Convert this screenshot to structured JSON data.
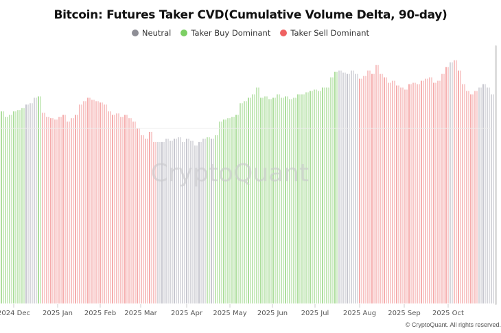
{
  "chart_data": {
    "type": "bar",
    "title": "Bitcoin: Futures Taker CVD(Cumulative Volume Delta, 90-day)",
    "legend": [
      {
        "key": "n",
        "label": "Neutral",
        "color": "#8e8e96"
      },
      {
        "key": "g",
        "label": "Taker Buy Dominant",
        "color": "#7ccf64"
      },
      {
        "key": "r",
        "label": "Taker Sell Dominant",
        "color": "#ef6262"
      }
    ],
    "bar_colors": {
      "n": "#c4c4cc",
      "g": "#a9dc98",
      "r": "#f4a9a9"
    },
    "xlabel": "",
    "ylabel": "",
    "x_ticks": [
      "2024 Dec",
      "2025 Jan",
      "2025 Feb",
      "2025 Mar",
      "2025 Apr",
      "2025 May",
      "2025 Jun",
      "2025 Jul",
      "2025 Aug",
      "2025 Sep",
      "2025 Oct"
    ],
    "ylim": [
      0,
      380
    ],
    "values": [
      282,
      274,
      277,
      282,
      284,
      287,
      292,
      294,
      302,
      304,
      280,
      274,
      272,
      270,
      274,
      277,
      267,
      272,
      277,
      292,
      297,
      302,
      299,
      297,
      295,
      292,
      282,
      277,
      279,
      274,
      277,
      272,
      267,
      257,
      247,
      242,
      252,
      237,
      237,
      237,
      242,
      239,
      242,
      244,
      237,
      242,
      239,
      232,
      237,
      242,
      244,
      242,
      247,
      267,
      270,
      272,
      274,
      277,
      294,
      297,
      302,
      307,
      317,
      302,
      304,
      300,
      302,
      307,
      302,
      304,
      300,
      302,
      307,
      307,
      310,
      312,
      314,
      312,
      317,
      317,
      332,
      340,
      342,
      339,
      337,
      342,
      337,
      330,
      334,
      342,
      337,
      350,
      337,
      332,
      324,
      327,
      320,
      317,
      314,
      322,
      324,
      322,
      327,
      330,
      332,
      324,
      327,
      337,
      347,
      354,
      357,
      342,
      322,
      312,
      307,
      312,
      317,
      322,
      317,
      307
    ],
    "signals": [
      "g",
      "g",
      "g",
      "g",
      "g",
      "g",
      "n",
      "n",
      "n",
      "g",
      "r",
      "r",
      "r",
      "r",
      "r",
      "r",
      "r",
      "r",
      "r",
      "r",
      "r",
      "r",
      "r",
      "r",
      "r",
      "r",
      "r",
      "r",
      "r",
      "r",
      "r",
      "r",
      "r",
      "r",
      "r",
      "r",
      "r",
      "r",
      "n",
      "n",
      "n",
      "n",
      "n",
      "n",
      "n",
      "n",
      "n",
      "n",
      "n",
      "n",
      "g",
      "n",
      "g",
      "g",
      "g",
      "g",
      "g",
      "g",
      "g",
      "g",
      "g",
      "g",
      "g",
      "g",
      "g",
      "g",
      "g",
      "g",
      "g",
      "g",
      "g",
      "g",
      "g",
      "g",
      "g",
      "g",
      "g",
      "g",
      "g",
      "g",
      "g",
      "g",
      "n",
      "n",
      "n",
      "n",
      "n",
      "r",
      "r",
      "r",
      "r",
      "r",
      "r",
      "r",
      "r",
      "r",
      "r",
      "r",
      "r",
      "r",
      "r",
      "r",
      "r",
      "r",
      "r",
      "r",
      "r",
      "r",
      "r",
      "n",
      "r",
      "r",
      "r",
      "r",
      "r",
      "r",
      "n",
      "n",
      "n",
      "n",
      "r"
    ],
    "watermark": "CryptoQuant",
    "copyright": "© CryptoQuant. All rights reserved."
  }
}
